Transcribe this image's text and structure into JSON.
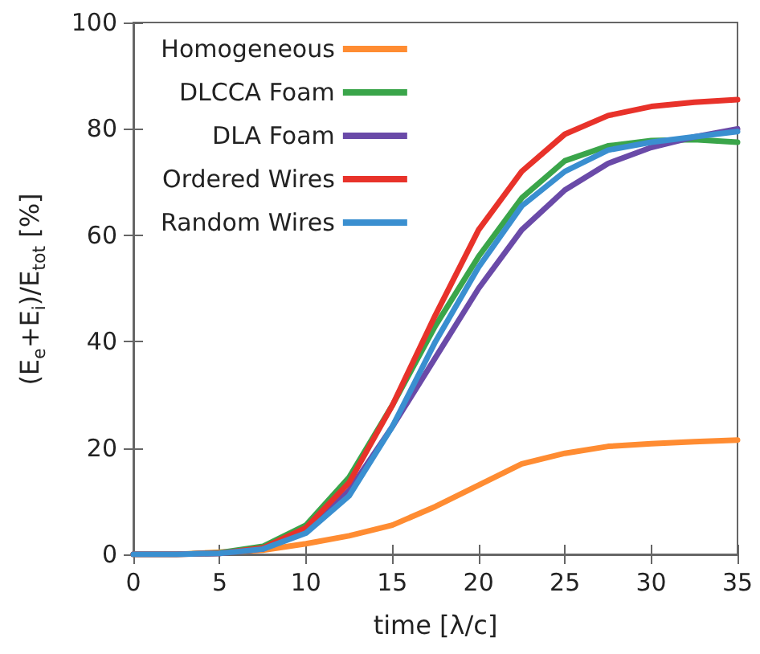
{
  "chart_data": {
    "type": "line",
    "xlabel": "time [λ/c]",
    "ylabel": "(E$_{e}$+E$_{i}$)/E$_{tot}$ [%]",
    "x": [
      0,
      2.5,
      5,
      7.5,
      10,
      12.5,
      15,
      17.5,
      20,
      22.5,
      25,
      27.5,
      30,
      32.5,
      35
    ],
    "series": [
      {
        "name": "Homogeneous",
        "color": "#ff8c32",
        "values": [
          0,
          0,
          null,
          0.8,
          2,
          3.5,
          5.5,
          9,
          13,
          17,
          19,
          20.3,
          20.8,
          21.2,
          21.5
        ]
      },
      {
        "name": "DLCCA Foam",
        "color": "#3aa54a",
        "values": [
          0,
          0,
          0.3,
          1.5,
          5.5,
          14.5,
          28,
          43,
          56,
          67,
          74,
          76.8,
          77.8,
          78,
          77.5
        ]
      },
      {
        "name": "DLA Foam",
        "color": "#6a4aa8",
        "values": [
          0,
          0,
          0.2,
          1,
          4.5,
          12,
          24,
          37,
          50,
          61,
          68.5,
          73.5,
          76.5,
          78.5,
          80
        ]
      },
      {
        "name": "Ordered Wires",
        "color": "#e8322a",
        "values": [
          0,
          0,
          0.2,
          1.2,
          5,
          13.5,
          28,
          45,
          61,
          72,
          79,
          82.5,
          84.2,
          85,
          85.5
        ]
      },
      {
        "name": "Random Wires",
        "color": "#3a8fd0",
        "values": [
          0,
          0,
          0.2,
          1,
          4,
          11,
          24,
          40,
          54,
          65.5,
          72,
          76,
          77.5,
          78.5,
          79.5
        ]
      }
    ],
    "xlim": [
      0,
      35
    ],
    "xticks": [
      0,
      5,
      10,
      15,
      20,
      25,
      30,
      35
    ],
    "ylim": [
      0,
      100
    ],
    "yticks": [
      0,
      20,
      40,
      60,
      80,
      100
    ],
    "grid": false,
    "legend": "top left",
    "marker": "none",
    "line_style": "solid"
  }
}
